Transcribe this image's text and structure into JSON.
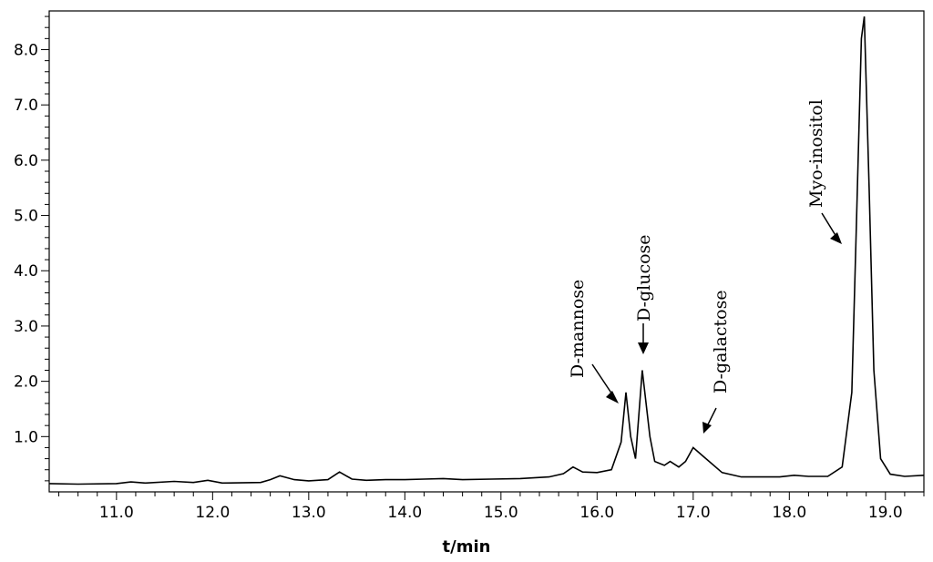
{
  "chart_data": {
    "type": "line",
    "title": "",
    "xlabel": "t/min",
    "ylabel": "",
    "xlim": [
      10.3,
      19.4
    ],
    "ylim": [
      0.0,
      8.7
    ],
    "x_ticks": [
      11.0,
      12.0,
      13.0,
      14.0,
      15.0,
      16.0,
      17.0,
      18.0,
      19.0
    ],
    "x_tick_labels": [
      "11.0",
      "12.0",
      "13.0",
      "14.0",
      "15.0",
      "16.0",
      "17.0",
      "18.0",
      "19.0"
    ],
    "y_ticks": [
      1.0,
      2.0,
      3.0,
      4.0,
      5.0,
      6.0,
      7.0,
      8.0
    ],
    "y_tick_labels": [
      "1.0",
      "2.0",
      "3.0",
      "4.0",
      "5.0",
      "6.0",
      "7.0",
      "8.0"
    ],
    "grid": false,
    "line_color": "#000000",
    "series": [
      {
        "name": "",
        "x": [
          10.3,
          10.6,
          11.0,
          11.15,
          11.3,
          11.6,
          11.8,
          11.95,
          12.1,
          12.5,
          12.6,
          12.7,
          12.85,
          13.0,
          13.2,
          13.32,
          13.45,
          13.6,
          13.8,
          14.0,
          14.2,
          14.4,
          14.6,
          14.9,
          15.2,
          15.5,
          15.65,
          15.75,
          15.85,
          16.0,
          16.15,
          16.25,
          16.3,
          16.35,
          16.4,
          16.47,
          16.55,
          16.6,
          16.7,
          16.76,
          16.85,
          16.92,
          17.0,
          17.1,
          17.3,
          17.5,
          17.9,
          18.05,
          18.2,
          18.4,
          18.55,
          18.65,
          18.7,
          18.75,
          18.78,
          18.83,
          18.88,
          18.95,
          19.05,
          19.2,
          19.4
        ],
        "y": [
          0.15,
          0.14,
          0.15,
          0.18,
          0.16,
          0.19,
          0.17,
          0.21,
          0.16,
          0.17,
          0.22,
          0.29,
          0.22,
          0.2,
          0.22,
          0.36,
          0.23,
          0.21,
          0.22,
          0.22,
          0.23,
          0.24,
          0.22,
          0.23,
          0.24,
          0.27,
          0.33,
          0.45,
          0.36,
          0.35,
          0.4,
          0.9,
          1.8,
          1.0,
          0.6,
          2.2,
          1.0,
          0.55,
          0.48,
          0.55,
          0.45,
          0.55,
          0.8,
          0.65,
          0.35,
          0.27,
          0.27,
          0.3,
          0.28,
          0.28,
          0.45,
          1.8,
          5.0,
          8.2,
          8.6,
          5.5,
          2.2,
          0.6,
          0.32,
          0.28,
          0.3
        ]
      }
    ],
    "annotations": [
      {
        "text": "D-mannose",
        "peak_x": 16.3,
        "peak_y": 1.8
      },
      {
        "text": "D-glucose",
        "peak_x": 16.47,
        "peak_y": 2.2
      },
      {
        "text": "D-galactose",
        "peak_x": 17.0,
        "peak_y": 0.8
      },
      {
        "text": "Myo-inositol",
        "peak_x": 18.78,
        "peak_y": 8.6
      }
    ]
  }
}
